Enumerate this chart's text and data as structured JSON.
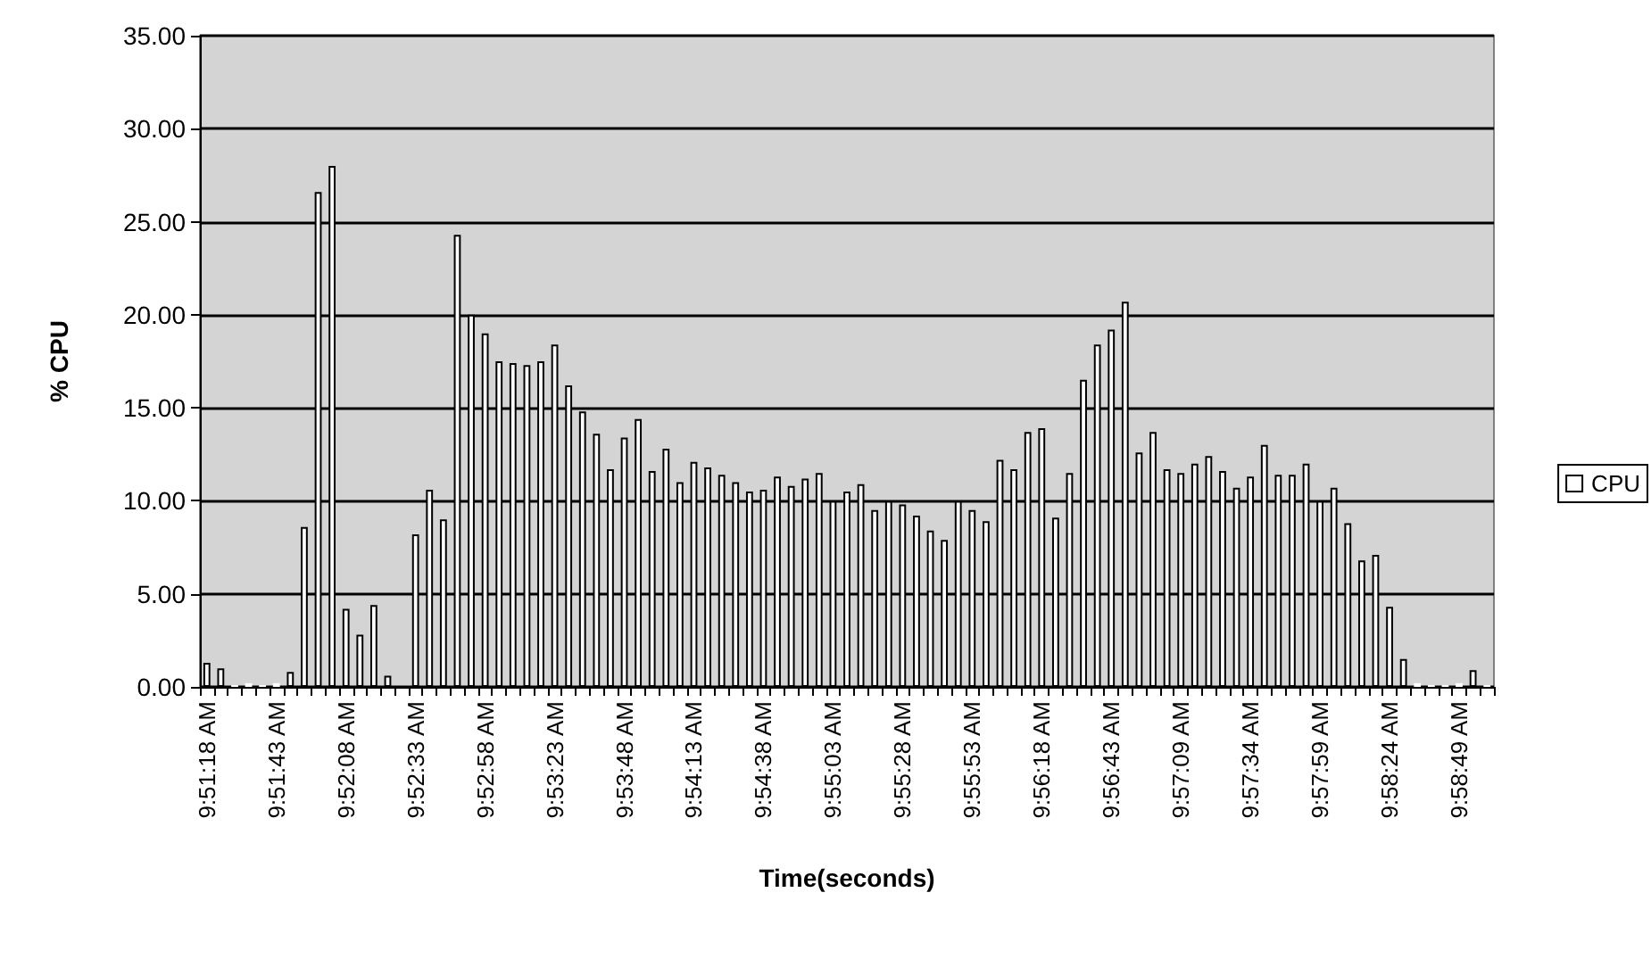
{
  "chart_data": {
    "type": "bar",
    "xlabel": "Time(seconds)",
    "ylabel": "% CPU",
    "categories": [
      "9:51:18 AM",
      null,
      null,
      null,
      null,
      "9:51:43 AM",
      null,
      null,
      null,
      null,
      "9:52:08 AM",
      null,
      null,
      null,
      null,
      "9:52:33 AM",
      null,
      null,
      null,
      null,
      "9:52:58 AM",
      null,
      null,
      null,
      null,
      "9:53:23 AM",
      null,
      null,
      null,
      null,
      "9:53:48 AM",
      null,
      null,
      null,
      null,
      "9:54:13 AM",
      null,
      null,
      null,
      null,
      "9:54:38 AM",
      null,
      null,
      null,
      null,
      "9:55:03 AM",
      null,
      null,
      null,
      null,
      "9:55:28 AM",
      null,
      null,
      null,
      null,
      "9:55:53 AM",
      null,
      null,
      null,
      null,
      "9:56:18 AM",
      null,
      null,
      null,
      null,
      "9:56:43 AM",
      null,
      null,
      null,
      null,
      "9:57:09 AM",
      null,
      null,
      null,
      null,
      "9:57:34 AM",
      null,
      null,
      null,
      null,
      "9:57:59 AM",
      null,
      null,
      null,
      null,
      "9:58:24 AM",
      null,
      null,
      null,
      null,
      "9:58:49 AM",
      null,
      null
    ],
    "series": [
      {
        "name": "CPU",
        "color": "#ffffff",
        "values": [
          1.3,
          1.0,
          0.1,
          0.2,
          0.1,
          0.2,
          0.8,
          8.6,
          26.6,
          28.0,
          4.2,
          2.8,
          4.4,
          0.6,
          0,
          8.2,
          10.6,
          9.0,
          24.3,
          20.0,
          19.0,
          17.5,
          17.4,
          17.3,
          17.5,
          18.4,
          16.2,
          14.8,
          13.6,
          11.7,
          13.4,
          14.4,
          11.6,
          12.8,
          11.0,
          12.1,
          11.8,
          11.4,
          11.0,
          10.5,
          10.6,
          11.3,
          10.8,
          11.2,
          11.5,
          10.0,
          10.5,
          10.9,
          9.5,
          10.0,
          9.8,
          9.2,
          8.4,
          7.9,
          10.0,
          9.5,
          8.9,
          12.2,
          11.7,
          13.7,
          13.9,
          9.1,
          11.5,
          16.5,
          18.4,
          19.2,
          20.7,
          12.6,
          13.7,
          11.7,
          11.5,
          12.0,
          12.4,
          11.6,
          10.7,
          11.3,
          13.0,
          11.4,
          11.4,
          12.0,
          10.0,
          10.7,
          8.8,
          6.8,
          7.1,
          4.3,
          1.5,
          0.2,
          0.1,
          0.1,
          0.2,
          0.9,
          0.1
        ]
      }
    ],
    "ylim": [
      0,
      35
    ],
    "yticks": [
      {
        "value": 0,
        "label": "0.00"
      },
      {
        "value": 5,
        "label": "5.00"
      },
      {
        "value": 10,
        "label": "10.00"
      },
      {
        "value": 15,
        "label": "15.00"
      },
      {
        "value": 20,
        "label": "20.00"
      },
      {
        "value": 25,
        "label": "25.00"
      },
      {
        "value": 30,
        "label": "30.00"
      },
      {
        "value": 35,
        "label": "35.00"
      }
    ],
    "grid": "y",
    "legend": "right"
  }
}
